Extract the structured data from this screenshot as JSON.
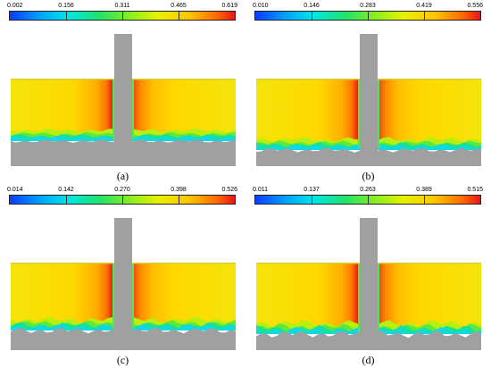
{
  "panels": [
    {
      "caption": "(a)",
      "ticks": [
        "0.002",
        "0.156",
        "0.311",
        "0.465",
        "0.619"
      ],
      "variant": 0
    },
    {
      "caption": "(b)",
      "ticks": [
        "0.010",
        "0.146",
        "0.283",
        "0.419",
        "0.556"
      ],
      "variant": 1
    },
    {
      "caption": "(c)",
      "ticks": [
        "0.014",
        "0.142",
        "0.270",
        "0.398",
        "0.526"
      ],
      "variant": 2
    },
    {
      "caption": "(d)",
      "ticks": [
        "0.011",
        "0.137",
        "0.263",
        "0.389",
        "0.515"
      ],
      "variant": 3
    }
  ],
  "colors": {
    "background": "#ffffff",
    "wall": "#a0a0a0",
    "colormap": [
      "#0a3cff",
      "#00a6ff",
      "#00e6e6",
      "#20e36a",
      "#86ef22",
      "#e8f000",
      "#ffc400",
      "#ff6a00",
      "#e8141a"
    ]
  }
}
